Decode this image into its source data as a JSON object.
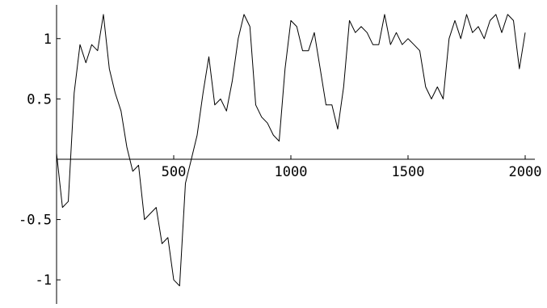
{
  "chart_data": {
    "type": "line",
    "title": "",
    "xlabel": "",
    "ylabel": "",
    "xlim": [
      0,
      2000
    ],
    "ylim": [
      -1.2,
      1.28
    ],
    "grid": false,
    "legend": "none",
    "x_ticks": [
      {
        "value": 500,
        "label": "500"
      },
      {
        "value": 1000,
        "label": "1000"
      },
      {
        "value": 1500,
        "label": "1500"
      },
      {
        "value": 2000,
        "label": "2000"
      }
    ],
    "y_ticks": [
      {
        "value": 1,
        "label": "1"
      },
      {
        "value": 0.5,
        "label": "0.5"
      },
      {
        "value": -0.5,
        "label": "-0.5"
      },
      {
        "value": -1,
        "label": "-1"
      }
    ],
    "series": [
      {
        "name": "",
        "color": "#000000",
        "x": [
          0,
          25,
          50,
          75,
          100,
          125,
          150,
          175,
          200,
          225,
          250,
          275,
          300,
          325,
          350,
          375,
          400,
          425,
          450,
          475,
          500,
          525,
          550,
          575,
          600,
          625,
          650,
          675,
          700,
          725,
          750,
          775,
          800,
          825,
          850,
          875,
          900,
          925,
          950,
          975,
          1000,
          1025,
          1050,
          1075,
          1100,
          1125,
          1150,
          1175,
          1200,
          1225,
          1250,
          1275,
          1300,
          1325,
          1350,
          1375,
          1400,
          1425,
          1450,
          1475,
          1500,
          1525,
          1550,
          1575,
          1600,
          1625,
          1650,
          1675,
          1700,
          1725,
          1750,
          1775,
          1800,
          1825,
          1850,
          1875,
          1900,
          1925,
          1950,
          1975,
          2000
        ],
        "y": [
          0.05,
          -0.4,
          -0.35,
          0.55,
          0.95,
          0.8,
          0.95,
          0.9,
          1.2,
          0.75,
          0.55,
          0.4,
          0.1,
          -0.1,
          -0.05,
          -0.5,
          -0.45,
          -0.4,
          -0.7,
          -0.65,
          -1.0,
          -1.05,
          -0.2,
          0.0,
          0.2,
          0.55,
          0.85,
          0.45,
          0.5,
          0.4,
          0.65,
          1.0,
          1.2,
          1.1,
          0.45,
          0.35,
          0.3,
          0.2,
          0.15,
          0.75,
          1.15,
          1.1,
          0.9,
          0.9,
          1.05,
          0.75,
          0.45,
          0.45,
          0.25,
          0.6,
          1.15,
          1.05,
          1.1,
          1.05,
          0.95,
          0.95,
          1.2,
          0.95,
          1.05,
          0.95,
          1.0,
          0.95,
          0.9,
          0.6,
          0.5,
          0.6,
          0.5,
          1.0,
          1.15,
          1.0,
          1.2,
          1.05,
          1.1,
          1.0,
          1.15,
          1.2,
          1.05,
          1.2,
          1.15,
          0.75,
          1.05
        ]
      }
    ]
  }
}
